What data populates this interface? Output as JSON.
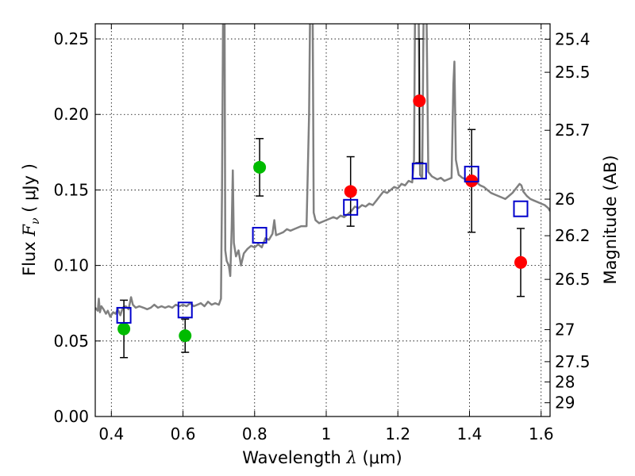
{
  "chart_data": {
    "type": "scatter",
    "xlabel": "Wavelength",
    "xlabel_symbol": "λ",
    "xlabel_unit": "(μm)",
    "ylabel": "Flux",
    "ylabel_symbol": "F",
    "ylabel_subscript": "ν",
    "ylabel_unit": "( μJy )",
    "y2label": "Magnitude (AB)",
    "xlim": [
      0.355,
      1.625
    ],
    "ylim": [
      0.0,
      0.26
    ],
    "grid": true,
    "x_ticks": [
      {
        "value": 0.4,
        "label": "0.4"
      },
      {
        "value": 0.6,
        "label": "0.6"
      },
      {
        "value": 0.8,
        "label": "0.8"
      },
      {
        "value": 1.0,
        "label": "1"
      },
      {
        "value": 1.2,
        "label": "1.2"
      },
      {
        "value": 1.4,
        "label": "1.4"
      },
      {
        "value": 1.6,
        "label": "1.6"
      }
    ],
    "y_ticks": [
      {
        "value": 0.0,
        "label": "0.00"
      },
      {
        "value": 0.05,
        "label": "0.05"
      },
      {
        "value": 0.1,
        "label": "0.10"
      },
      {
        "value": 0.15,
        "label": "0.15"
      },
      {
        "value": 0.2,
        "label": "0.20"
      },
      {
        "value": 0.25,
        "label": "0.25"
      }
    ],
    "y2_ticks": [
      {
        "label": "25.4",
        "flux": 0.2498
      },
      {
        "label": "25.5",
        "flux": 0.2279
      },
      {
        "label": "25.7",
        "flux": 0.1895
      },
      {
        "label": "26",
        "flux": 0.1439
      },
      {
        "label": "26.2",
        "flux": 0.1197
      },
      {
        "label": "26.5",
        "flux": 0.0908
      },
      {
        "label": "27",
        "flux": 0.0575
      },
      {
        "label": "27.5",
        "flux": 0.0363
      },
      {
        "label": "28",
        "flux": 0.0229
      },
      {
        "label": "29",
        "flux": 0.0091
      }
    ],
    "spectrum": {
      "color": "#808080",
      "points": [
        [
          0.355,
          0.072
        ],
        [
          0.362,
          0.07
        ],
        [
          0.365,
          0.078
        ],
        [
          0.368,
          0.069
        ],
        [
          0.372,
          0.073
        ],
        [
          0.378,
          0.071
        ],
        [
          0.385,
          0.068
        ],
        [
          0.39,
          0.07
        ],
        [
          0.397,
          0.066
        ],
        [
          0.405,
          0.069
        ],
        [
          0.412,
          0.068
        ],
        [
          0.418,
          0.071
        ],
        [
          0.425,
          0.067
        ],
        [
          0.432,
          0.072
        ],
        [
          0.44,
          0.073
        ],
        [
          0.448,
          0.071
        ],
        [
          0.455,
          0.079
        ],
        [
          0.46,
          0.074
        ],
        [
          0.468,
          0.072
        ],
        [
          0.478,
          0.073
        ],
        [
          0.49,
          0.072
        ],
        [
          0.5,
          0.071
        ],
        [
          0.51,
          0.072
        ],
        [
          0.52,
          0.074
        ],
        [
          0.53,
          0.072
        ],
        [
          0.54,
          0.073
        ],
        [
          0.55,
          0.072
        ],
        [
          0.56,
          0.073
        ],
        [
          0.57,
          0.072
        ],
        [
          0.58,
          0.074
        ],
        [
          0.59,
          0.073
        ],
        [
          0.6,
          0.074
        ],
        [
          0.61,
          0.073
        ],
        [
          0.62,
          0.075
        ],
        [
          0.63,
          0.073
        ],
        [
          0.64,
          0.074
        ],
        [
          0.65,
          0.075
        ],
        [
          0.66,
          0.073
        ],
        [
          0.67,
          0.076
        ],
        [
          0.68,
          0.074
        ],
        [
          0.69,
          0.075
        ],
        [
          0.7,
          0.074
        ],
        [
          0.706,
          0.078
        ],
        [
          0.709,
          0.15
        ],
        [
          0.712,
          0.27
        ],
        [
          0.716,
          0.27
        ],
        [
          0.718,
          0.11
        ],
        [
          0.722,
          0.103
        ],
        [
          0.728,
          0.1
        ],
        [
          0.732,
          0.093
        ],
        [
          0.736,
          0.125
        ],
        [
          0.739,
          0.163
        ],
        [
          0.742,
          0.115
        ],
        [
          0.748,
          0.106
        ],
        [
          0.755,
          0.11
        ],
        [
          0.762,
          0.1
        ],
        [
          0.77,
          0.108
        ],
        [
          0.78,
          0.111
        ],
        [
          0.79,
          0.113
        ],
        [
          0.8,
          0.112
        ],
        [
          0.81,
          0.114
        ],
        [
          0.82,
          0.112
        ],
        [
          0.83,
          0.118
        ],
        [
          0.84,
          0.117
        ],
        [
          0.85,
          0.121
        ],
        [
          0.855,
          0.13
        ],
        [
          0.86,
          0.12
        ],
        [
          0.87,
          0.121
        ],
        [
          0.88,
          0.122
        ],
        [
          0.89,
          0.124
        ],
        [
          0.9,
          0.123
        ],
        [
          0.91,
          0.124
        ],
        [
          0.92,
          0.125
        ],
        [
          0.93,
          0.126
        ],
        [
          0.945,
          0.126
        ],
        [
          0.952,
          0.2
        ],
        [
          0.955,
          0.27
        ],
        [
          0.962,
          0.27
        ],
        [
          0.965,
          0.135
        ],
        [
          0.97,
          0.13
        ],
        [
          0.98,
          0.128
        ],
        [
          0.99,
          0.129
        ],
        [
          1.0,
          0.13
        ],
        [
          1.01,
          0.131
        ],
        [
          1.02,
          0.132
        ],
        [
          1.03,
          0.131
        ],
        [
          1.04,
          0.133
        ],
        [
          1.05,
          0.132
        ],
        [
          1.06,
          0.134
        ],
        [
          1.07,
          0.136
        ],
        [
          1.08,
          0.139
        ],
        [
          1.09,
          0.138
        ],
        [
          1.1,
          0.14
        ],
        [
          1.11,
          0.139
        ],
        [
          1.12,
          0.141
        ],
        [
          1.13,
          0.14
        ],
        [
          1.14,
          0.143
        ],
        [
          1.15,
          0.146
        ],
        [
          1.16,
          0.149
        ],
        [
          1.17,
          0.148
        ],
        [
          1.18,
          0.15
        ],
        [
          1.19,
          0.152
        ],
        [
          1.2,
          0.151
        ],
        [
          1.21,
          0.154
        ],
        [
          1.22,
          0.153
        ],
        [
          1.23,
          0.156
        ],
        [
          1.24,
          0.155
        ],
        [
          1.245,
          0.17
        ],
        [
          1.248,
          0.27
        ],
        [
          1.258,
          0.27
        ],
        [
          1.262,
          0.16
        ],
        [
          1.268,
          0.158
        ],
        [
          1.272,
          0.27
        ],
        [
          1.28,
          0.27
        ],
        [
          1.285,
          0.162
        ],
        [
          1.295,
          0.159
        ],
        [
          1.31,
          0.157
        ],
        [
          1.32,
          0.158
        ],
        [
          1.33,
          0.156
        ],
        [
          1.34,
          0.157
        ],
        [
          1.35,
          0.158
        ],
        [
          1.355,
          0.22
        ],
        [
          1.358,
          0.235
        ],
        [
          1.362,
          0.17
        ],
        [
          1.37,
          0.16
        ],
        [
          1.38,
          0.158
        ],
        [
          1.39,
          0.157
        ],
        [
          1.4,
          0.156
        ],
        [
          1.41,
          0.158
        ],
        [
          1.42,
          0.155
        ],
        [
          1.43,
          0.153
        ],
        [
          1.44,
          0.152
        ],
        [
          1.45,
          0.15
        ],
        [
          1.46,
          0.148
        ],
        [
          1.47,
          0.147
        ],
        [
          1.48,
          0.146
        ],
        [
          1.49,
          0.145
        ],
        [
          1.5,
          0.144
        ],
        [
          1.51,
          0.146
        ],
        [
          1.52,
          0.148
        ],
        [
          1.53,
          0.151
        ],
        [
          1.54,
          0.154
        ],
        [
          1.545,
          0.153
        ],
        [
          1.55,
          0.149
        ],
        [
          1.56,
          0.146
        ],
        [
          1.57,
          0.144
        ],
        [
          1.58,
          0.143
        ],
        [
          1.59,
          0.142
        ],
        [
          1.6,
          0.141
        ],
        [
          1.61,
          0.14
        ],
        [
          1.62,
          0.138
        ],
        [
          1.625,
          0.136
        ]
      ]
    },
    "series": [
      {
        "marker": "circle",
        "color": "#00bb00",
        "points": [
          {
            "x": 0.435,
            "y": 0.058,
            "err": 0.019
          },
          {
            "x": 0.606,
            "y": 0.0535,
            "err": 0.011
          },
          {
            "x": 0.814,
            "y": 0.165,
            "err": 0.019
          }
        ]
      },
      {
        "marker": "circle",
        "color": "#ff0000",
        "points": [
          {
            "x": 1.068,
            "y": 0.149,
            "err": 0.023
          },
          {
            "x": 1.26,
            "y": 0.209,
            "err": 0.041
          },
          {
            "x": 1.406,
            "y": 0.156,
            "err": 0.034
          },
          {
            "x": 1.543,
            "y": 0.102,
            "err": 0.0225
          }
        ]
      },
      {
        "marker": "square-open",
        "color": "#0000cc",
        "points": [
          {
            "x": 0.435,
            "y": 0.067
          },
          {
            "x": 0.606,
            "y": 0.0705
          },
          {
            "x": 0.814,
            "y": 0.12
          },
          {
            "x": 1.068,
            "y": 0.1385
          },
          {
            "x": 1.26,
            "y": 0.1625
          },
          {
            "x": 1.406,
            "y": 0.1605
          },
          {
            "x": 1.543,
            "y": 0.1375
          }
        ]
      }
    ]
  }
}
